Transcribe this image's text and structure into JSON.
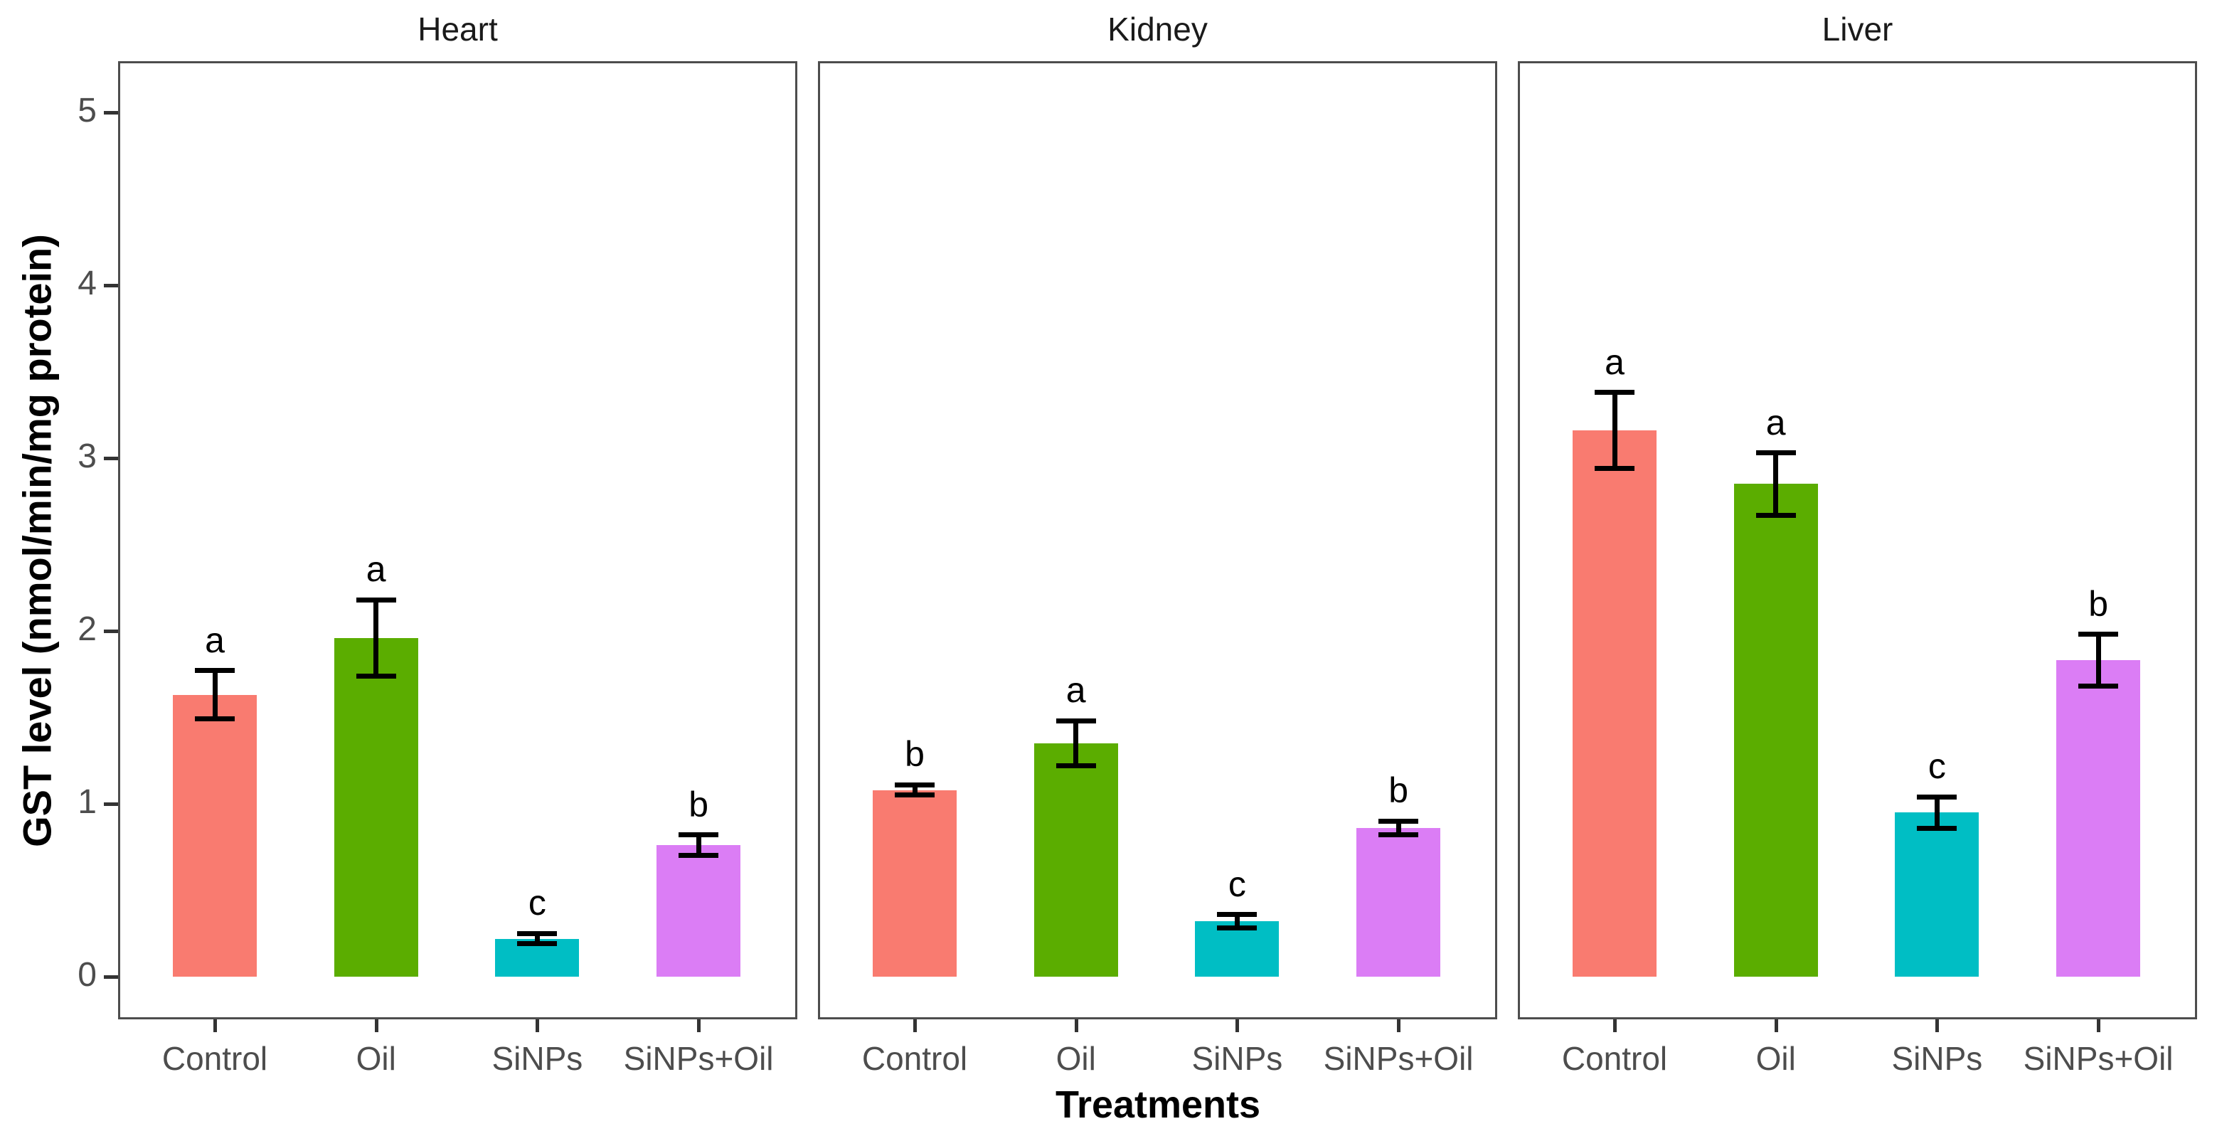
{
  "chart_data": {
    "type": "bar",
    "title": "",
    "xlabel": "Treatments",
    "ylabel": "GST level (nmol/min/mg protein)",
    "categories": [
      "Control",
      "Oil",
      "SiNPs",
      "SiNPs+Oil"
    ],
    "bar_colors": [
      "#F97B70",
      "#5BAD00",
      "#00BEC4",
      "#DB7DF5"
    ],
    "yticks": [
      "0",
      "1",
      "2",
      "3",
      "4",
      "5"
    ],
    "ytick_values": [
      0,
      1,
      2,
      3,
      4,
      5
    ],
    "ylim": [
      -0.25,
      5.3
    ],
    "grid": "off",
    "legend": "none",
    "error_bars": "mean ± sd, caps shown",
    "facets": [
      {
        "title": "Heart",
        "series": [
          {
            "category": "Control",
            "value": 1.63,
            "error": 0.14,
            "letter": "a"
          },
          {
            "category": "Oil",
            "value": 1.96,
            "error": 0.22,
            "letter": "a"
          },
          {
            "category": "SiNPs",
            "value": 0.22,
            "error": 0.03,
            "letter": "c"
          },
          {
            "category": "SiNPs+Oil",
            "value": 0.76,
            "error": 0.06,
            "letter": "b"
          }
        ]
      },
      {
        "title": "Kidney",
        "series": [
          {
            "category": "Control",
            "value": 1.08,
            "error": 0.03,
            "letter": "b"
          },
          {
            "category": "Oil",
            "value": 1.35,
            "error": 0.13,
            "letter": "a"
          },
          {
            "category": "SiNPs",
            "value": 0.32,
            "error": 0.04,
            "letter": "c"
          },
          {
            "category": "SiNPs+Oil",
            "value": 0.86,
            "error": 0.04,
            "letter": "b"
          }
        ]
      },
      {
        "title": "Liver",
        "series": [
          {
            "category": "Control",
            "value": 3.16,
            "error": 0.22,
            "letter": "a"
          },
          {
            "category": "Oil",
            "value": 2.85,
            "error": 0.18,
            "letter": "a"
          },
          {
            "category": "SiNPs",
            "value": 0.95,
            "error": 0.09,
            "letter": "c"
          },
          {
            "category": "SiNPs+Oil",
            "value": 1.83,
            "error": 0.15,
            "letter": "b"
          }
        ]
      }
    ],
    "colors": {
      "axis_text": "#4d4d4d",
      "panel_border": "#4d4d4d",
      "tick_mark": "#333333",
      "title_text": "#1a1a1a",
      "error_bar": "#000000"
    }
  }
}
